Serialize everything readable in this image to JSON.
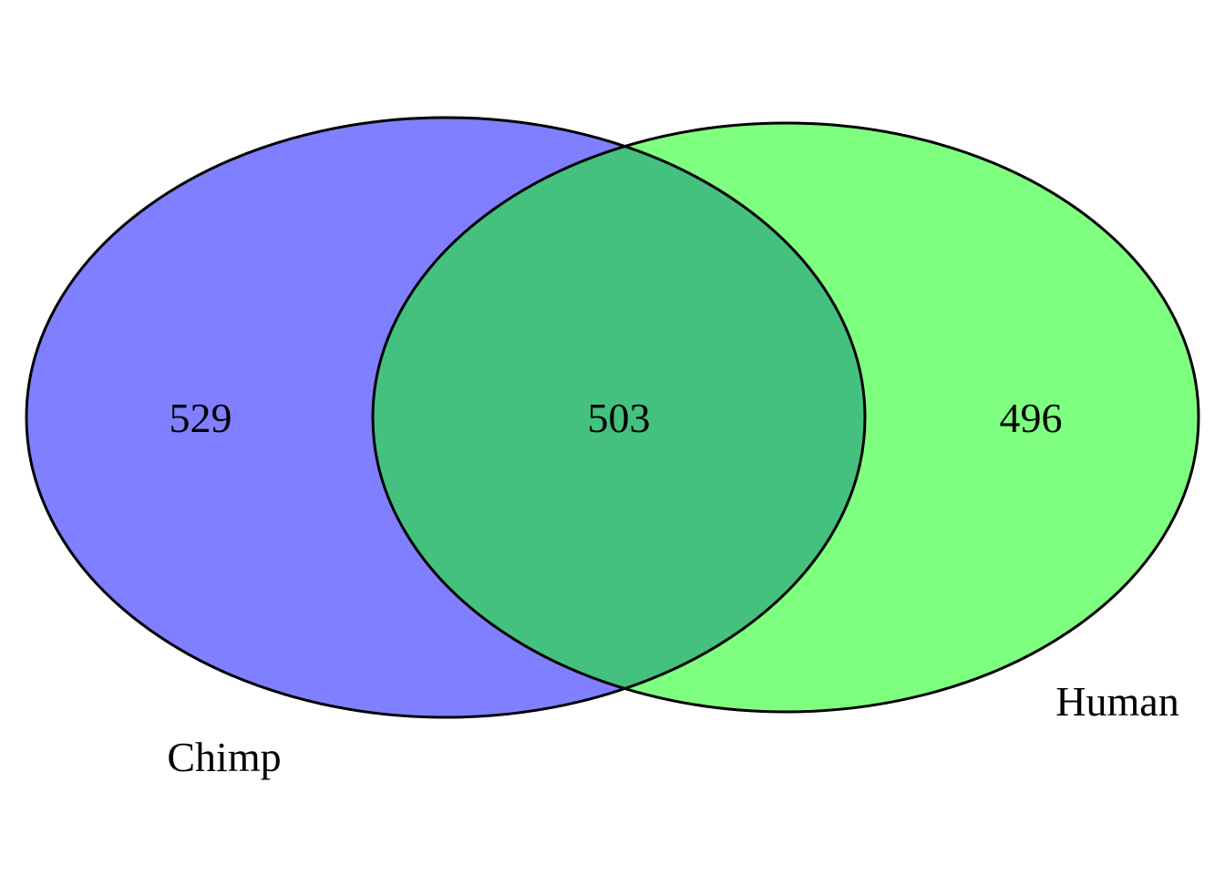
{
  "venn": {
    "sets": [
      {
        "name": "Chimp",
        "color": "#7f7fff"
      },
      {
        "name": "Human",
        "color": "#7fff7f"
      }
    ],
    "overlap_color": "#44c17f",
    "counts": {
      "chimp_only": "529",
      "both": "503",
      "human_only": "496"
    }
  }
}
